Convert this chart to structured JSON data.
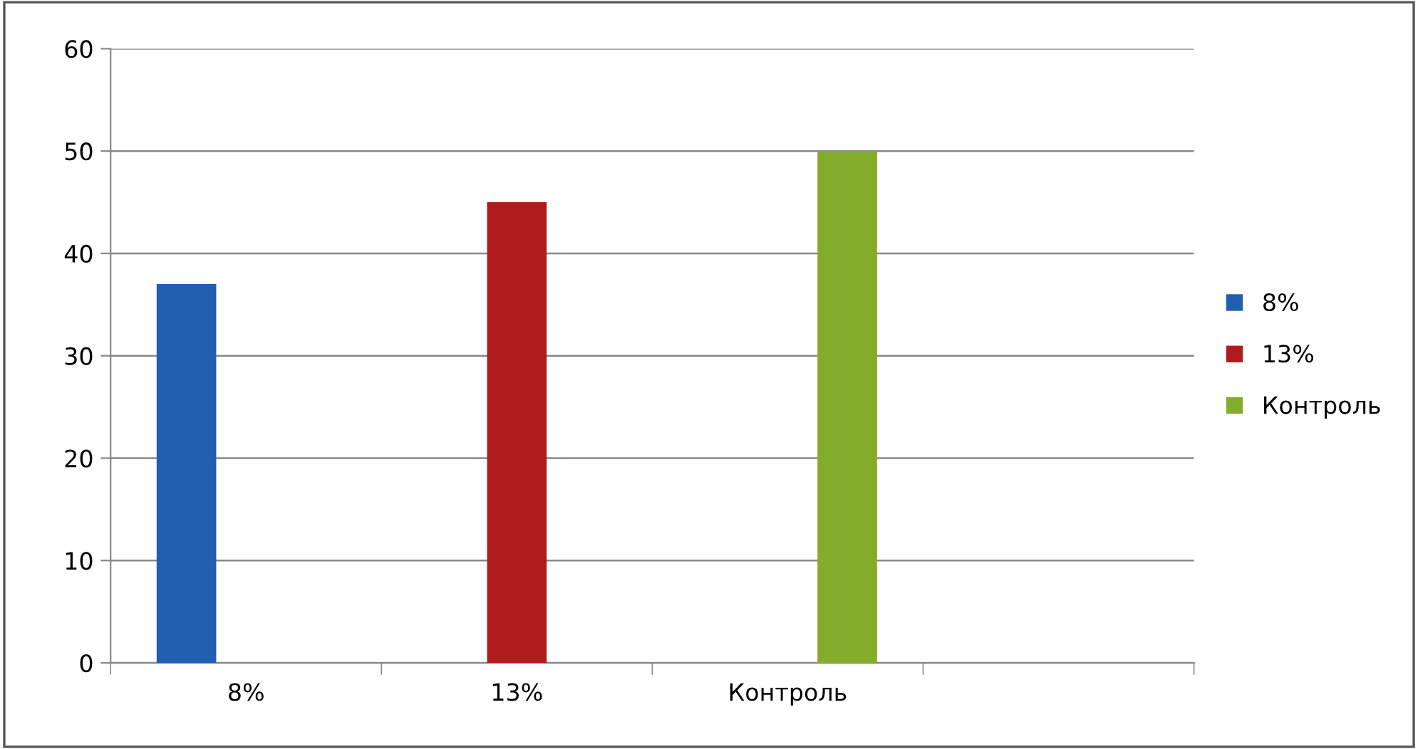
{
  "chart_data": {
    "type": "bar",
    "categories": [
      "8%",
      "13%",
      "Контроль",
      null
    ],
    "series": [
      {
        "name": "8%",
        "color": "#1f5fad",
        "values": [
          37,
          null,
          null,
          null
        ]
      },
      {
        "name": "13%",
        "color": "#b01c1c",
        "values": [
          null,
          45,
          null,
          null
        ]
      },
      {
        "name": "Контроль",
        "color": "#84ac2c",
        "values": [
          null,
          null,
          50,
          null
        ]
      }
    ],
    "ylim": [
      0,
      60
    ],
    "yticks": [
      0,
      10,
      20,
      30,
      40,
      50,
      60
    ],
    "grid": "y",
    "legend": "right"
  }
}
